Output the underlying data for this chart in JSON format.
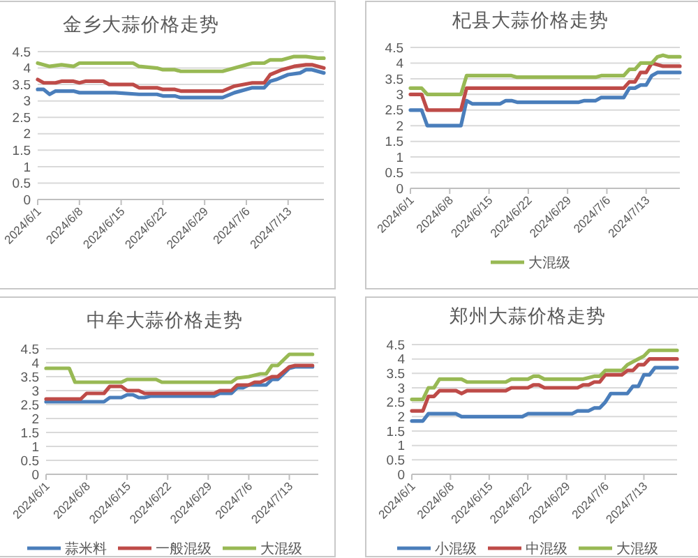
{
  "chart_data": [
    {
      "type": "line",
      "title": "金乡大蒜价格走势",
      "xlim": [
        "2024-06-01",
        "2024-07-19"
      ],
      "ylim": [
        0,
        4.5
      ],
      "yticks": [
        0,
        0.5,
        1,
        1.5,
        2,
        2.5,
        3,
        3.5,
        4,
        4.5
      ],
      "grid": "y",
      "legend": false,
      "xticks": [
        {
          "value": "2024-06-01",
          "label": "2024/6/1"
        },
        {
          "value": "2024-06-08",
          "label": "2024/6/8"
        },
        {
          "value": "2024-06-15",
          "label": "2024/6/15"
        },
        {
          "value": "2024-06-22",
          "label": "2024/6/22"
        },
        {
          "value": "2024-06-29",
          "label": "2024/6/29"
        },
        {
          "value": "2024-07-06",
          "label": "2024/7/6"
        },
        {
          "value": "2024-07-13",
          "label": "2024/7/13"
        }
      ],
      "series": [
        {
          "color": "#4a7ebb",
          "x": [
            "2024-06-01",
            "2024-06-02",
            "2024-06-03",
            "2024-06-04",
            "2024-06-07",
            "2024-06-08",
            "2024-06-14",
            "2024-06-18",
            "2024-06-21",
            "2024-06-22",
            "2024-06-24",
            "2024-06-25",
            "2024-07-02",
            "2024-07-04",
            "2024-07-07",
            "2024-07-09",
            "2024-07-10",
            "2024-07-11",
            "2024-07-13",
            "2024-07-15",
            "2024-07-16",
            "2024-07-17",
            "2024-07-19"
          ],
          "values": [
            3.35,
            3.35,
            3.2,
            3.3,
            3.3,
            3.25,
            3.25,
            3.2,
            3.2,
            3.15,
            3.15,
            3.1,
            3.1,
            3.25,
            3.4,
            3.4,
            3.6,
            3.65,
            3.8,
            3.85,
            3.95,
            3.95,
            3.85
          ]
        },
        {
          "color": "#be4b48",
          "x": [
            "2024-06-01",
            "2024-06-02",
            "2024-06-04",
            "2024-06-05",
            "2024-06-07",
            "2024-06-08",
            "2024-06-09",
            "2024-06-12",
            "2024-06-13",
            "2024-06-17",
            "2024-06-18",
            "2024-06-21",
            "2024-06-22",
            "2024-06-24",
            "2024-06-25",
            "2024-07-02",
            "2024-07-04",
            "2024-07-07",
            "2024-07-09",
            "2024-07-10",
            "2024-07-12",
            "2024-07-14",
            "2024-07-16",
            "2024-07-17",
            "2024-07-19"
          ],
          "values": [
            3.65,
            3.55,
            3.55,
            3.6,
            3.6,
            3.55,
            3.6,
            3.6,
            3.5,
            3.5,
            3.4,
            3.4,
            3.35,
            3.35,
            3.3,
            3.3,
            3.45,
            3.55,
            3.55,
            3.8,
            3.95,
            4.05,
            4.1,
            4.1,
            4.0
          ]
        },
        {
          "color": "#98b954",
          "x": [
            "2024-06-01",
            "2024-06-03",
            "2024-06-05",
            "2024-06-07",
            "2024-06-08",
            "2024-06-17",
            "2024-06-18",
            "2024-06-21",
            "2024-06-22",
            "2024-06-24",
            "2024-06-25",
            "2024-07-02",
            "2024-07-04",
            "2024-07-07",
            "2024-07-09",
            "2024-07-10",
            "2024-07-12",
            "2024-07-14",
            "2024-07-16",
            "2024-07-18",
            "2024-07-19"
          ],
          "values": [
            4.15,
            4.05,
            4.1,
            4.05,
            4.15,
            4.15,
            4.05,
            4.0,
            3.95,
            3.95,
            3.9,
            3.9,
            4.0,
            4.15,
            4.15,
            4.25,
            4.25,
            4.35,
            4.35,
            4.3,
            4.3
          ]
        }
      ]
    },
    {
      "type": "line",
      "title": "杞县大蒜价格走势",
      "xlim": [
        "2024-06-01",
        "2024-07-19"
      ],
      "ylim": [
        0,
        4.5
      ],
      "yticks": [
        0,
        0.5,
        1,
        1.5,
        2,
        2.5,
        3,
        3.5,
        4,
        4.5
      ],
      "grid": "y",
      "legend": "bottom",
      "xticks": [
        {
          "value": "2024-06-01",
          "label": "2024/6/1"
        },
        {
          "value": "2024-06-08",
          "label": "2024/6/8"
        },
        {
          "value": "2024-06-15",
          "label": "2024/6/15"
        },
        {
          "value": "2024-06-22",
          "label": "2024/6/22"
        },
        {
          "value": "2024-06-29",
          "label": "2024/6/29"
        },
        {
          "value": "2024-07-06",
          "label": "2024/7/6"
        },
        {
          "value": "2024-07-13",
          "label": "2024/7/13"
        }
      ],
      "series": [
        {
          "color": "#4a7ebb",
          "x": [
            "2024-06-01",
            "2024-06-03",
            "2024-06-04",
            "2024-06-10",
            "2024-06-11",
            "2024-06-12",
            "2024-06-17",
            "2024-06-18",
            "2024-06-19",
            "2024-06-20",
            "2024-07-01",
            "2024-07-02",
            "2024-07-04",
            "2024-07-05",
            "2024-07-09",
            "2024-07-10",
            "2024-07-11",
            "2024-07-12",
            "2024-07-13",
            "2024-07-14",
            "2024-07-15",
            "2024-07-19"
          ],
          "values": [
            2.5,
            2.5,
            2.0,
            2.0,
            2.8,
            2.7,
            2.7,
            2.8,
            2.8,
            2.75,
            2.75,
            2.8,
            2.8,
            2.9,
            2.9,
            3.2,
            3.2,
            3.3,
            3.3,
            3.6,
            3.7,
            3.7
          ]
        },
        {
          "color": "#be4b48",
          "x": [
            "2024-06-01",
            "2024-06-03",
            "2024-06-04",
            "2024-06-10",
            "2024-06-11",
            "2024-07-09",
            "2024-07-10",
            "2024-07-11",
            "2024-07-12",
            "2024-07-13",
            "2024-07-14",
            "2024-07-15",
            "2024-07-16",
            "2024-07-19"
          ],
          "values": [
            3.0,
            3.0,
            2.5,
            2.5,
            3.2,
            3.2,
            3.4,
            3.4,
            3.7,
            3.7,
            4.0,
            3.95,
            3.9,
            3.9
          ]
        },
        {
          "name": "大混级",
          "color": "#98b954",
          "x": [
            "2024-06-01",
            "2024-06-03",
            "2024-06-04",
            "2024-06-10",
            "2024-06-11",
            "2024-06-19",
            "2024-06-20",
            "2024-07-04",
            "2024-07-05",
            "2024-07-09",
            "2024-07-10",
            "2024-07-11",
            "2024-07-12",
            "2024-07-14",
            "2024-07-15",
            "2024-07-16",
            "2024-07-17",
            "2024-07-19"
          ],
          "values": [
            3.2,
            3.2,
            3.0,
            3.0,
            3.6,
            3.6,
            3.55,
            3.55,
            3.6,
            3.6,
            3.8,
            3.8,
            4.0,
            4.0,
            4.2,
            4.25,
            4.2,
            4.2
          ]
        }
      ]
    },
    {
      "type": "line",
      "title": "中牟大蒜价格走势",
      "xlim": [
        "2024-06-01",
        "2024-07-18"
      ],
      "ylim": [
        0,
        4.5
      ],
      "yticks": [
        0,
        0.5,
        1,
        1.5,
        2,
        2.5,
        3,
        3.5,
        4,
        4.5
      ],
      "grid": "y",
      "legend": "bottom",
      "xticks": [
        {
          "value": "2024-06-01",
          "label": "2024/6/1"
        },
        {
          "value": "2024-06-08",
          "label": "2024/6/8"
        },
        {
          "value": "2024-06-15",
          "label": "2024/6/15"
        },
        {
          "value": "2024-06-22",
          "label": "2024/6/22"
        },
        {
          "value": "2024-06-29",
          "label": "2024/6/29"
        },
        {
          "value": "2024-07-06",
          "label": "2024/7/6"
        },
        {
          "value": "2024-07-13",
          "label": "2024/7/13"
        }
      ],
      "series": [
        {
          "name": "蒜米料",
          "color": "#4a7ebb",
          "x": [
            "2024-06-01",
            "2024-06-11",
            "2024-06-12",
            "2024-06-14",
            "2024-06-15",
            "2024-06-16",
            "2024-06-17",
            "2024-06-18",
            "2024-06-19",
            "2024-06-30",
            "2024-07-01",
            "2024-07-03",
            "2024-07-04",
            "2024-07-05",
            "2024-07-06",
            "2024-07-09",
            "2024-07-10",
            "2024-07-11",
            "2024-07-13",
            "2024-07-14",
            "2024-07-17"
          ],
          "values": [
            2.6,
            2.6,
            2.75,
            2.75,
            2.85,
            2.85,
            2.75,
            2.75,
            2.8,
            2.8,
            2.9,
            2.9,
            3.1,
            3.1,
            3.2,
            3.2,
            3.4,
            3.4,
            3.8,
            3.85,
            3.85
          ]
        },
        {
          "name": "一般混级",
          "color": "#be4b48",
          "x": [
            "2024-06-01",
            "2024-06-07",
            "2024-06-08",
            "2024-06-11",
            "2024-06-12",
            "2024-06-14",
            "2024-06-15",
            "2024-06-17",
            "2024-06-18",
            "2024-06-30",
            "2024-07-01",
            "2024-07-03",
            "2024-07-04",
            "2024-07-06",
            "2024-07-07",
            "2024-07-08",
            "2024-07-10",
            "2024-07-11",
            "2024-07-13",
            "2024-07-14",
            "2024-07-17"
          ],
          "values": [
            2.7,
            2.7,
            2.9,
            2.9,
            3.15,
            3.15,
            3.0,
            3.0,
            2.9,
            2.9,
            3.0,
            3.0,
            3.2,
            3.2,
            3.3,
            3.3,
            3.5,
            3.5,
            3.85,
            3.9,
            3.9
          ]
        },
        {
          "name": "大混级",
          "color": "#98b954",
          "x": [
            "2024-06-01",
            "2024-06-05",
            "2024-06-06",
            "2024-06-14",
            "2024-06-15",
            "2024-06-20",
            "2024-06-21",
            "2024-07-03",
            "2024-07-04",
            "2024-07-06",
            "2024-07-08",
            "2024-07-09",
            "2024-07-10",
            "2024-07-11",
            "2024-07-13",
            "2024-07-17"
          ],
          "values": [
            3.8,
            3.8,
            3.3,
            3.3,
            3.4,
            3.4,
            3.3,
            3.3,
            3.45,
            3.5,
            3.6,
            3.6,
            3.9,
            3.9,
            4.3,
            4.3
          ]
        }
      ]
    },
    {
      "type": "line",
      "title": "郑州大蒜价格走势",
      "xlim": [
        "2024-06-01",
        "2024-07-19"
      ],
      "ylim": [
        0,
        4.5
      ],
      "yticks": [
        0,
        0.5,
        1,
        1.5,
        2,
        2.5,
        3,
        3.5,
        4,
        4.5
      ],
      "grid": "y",
      "legend": "bottom",
      "xticks": [
        {
          "value": "2024-06-01",
          "label": "2024/6/1"
        },
        {
          "value": "2024-06-08",
          "label": "2024/6/8"
        },
        {
          "value": "2024-06-15",
          "label": "2024/6/15"
        },
        {
          "value": "2024-06-22",
          "label": "2024/6/22"
        },
        {
          "value": "2024-06-29",
          "label": "2024/6/29"
        },
        {
          "value": "2024-07-06",
          "label": "2024/7/6"
        },
        {
          "value": "2024-07-13",
          "label": "2024/7/13"
        }
      ],
      "series": [
        {
          "name": "小混级",
          "color": "#4a7ebb",
          "x": [
            "2024-06-01",
            "2024-06-03",
            "2024-06-04",
            "2024-06-09",
            "2024-06-10",
            "2024-06-21",
            "2024-06-22",
            "2024-06-30",
            "2024-07-01",
            "2024-07-03",
            "2024-07-04",
            "2024-07-05",
            "2024-07-06",
            "2024-07-07",
            "2024-07-10",
            "2024-07-11",
            "2024-07-12",
            "2024-07-13",
            "2024-07-14",
            "2024-07-15",
            "2024-07-19"
          ],
          "values": [
            1.85,
            1.85,
            2.1,
            2.1,
            2.0,
            2.0,
            2.1,
            2.1,
            2.2,
            2.2,
            2.3,
            2.3,
            2.5,
            2.8,
            2.8,
            3.05,
            3.05,
            3.45,
            3.45,
            3.7,
            3.7
          ]
        },
        {
          "name": "中混级",
          "color": "#be4b48",
          "x": [
            "2024-06-01",
            "2024-06-03",
            "2024-06-04",
            "2024-06-05",
            "2024-06-06",
            "2024-06-09",
            "2024-06-10",
            "2024-06-11",
            "2024-06-18",
            "2024-06-19",
            "2024-06-22",
            "2024-06-23",
            "2024-06-24",
            "2024-06-25",
            "2024-07-01",
            "2024-07-02",
            "2024-07-03",
            "2024-07-04",
            "2024-07-05",
            "2024-07-06",
            "2024-07-09",
            "2024-07-10",
            "2024-07-11",
            "2024-07-12",
            "2024-07-13",
            "2024-07-14",
            "2024-07-19"
          ],
          "values": [
            2.2,
            2.2,
            2.7,
            2.7,
            2.9,
            2.9,
            2.8,
            2.9,
            2.9,
            3.0,
            3.0,
            3.1,
            3.1,
            3.0,
            3.0,
            3.1,
            3.1,
            3.2,
            3.2,
            3.45,
            3.45,
            3.6,
            3.6,
            3.8,
            3.8,
            4.0,
            4.0
          ]
        },
        {
          "name": "大混级",
          "color": "#98b954",
          "x": [
            "2024-06-01",
            "2024-06-03",
            "2024-06-04",
            "2024-06-05",
            "2024-06-06",
            "2024-06-10",
            "2024-06-11",
            "2024-06-18",
            "2024-06-19",
            "2024-06-22",
            "2024-06-23",
            "2024-06-24",
            "2024-06-25",
            "2024-07-02",
            "2024-07-04",
            "2024-07-05",
            "2024-07-06",
            "2024-07-09",
            "2024-07-10",
            "2024-07-11",
            "2024-07-12",
            "2024-07-13",
            "2024-07-14",
            "2024-07-19"
          ],
          "values": [
            2.6,
            2.6,
            3.0,
            3.0,
            3.3,
            3.3,
            3.2,
            3.2,
            3.3,
            3.3,
            3.4,
            3.4,
            3.3,
            3.3,
            3.4,
            3.4,
            3.6,
            3.6,
            3.8,
            3.9,
            4.0,
            4.1,
            4.3,
            4.3
          ]
        }
      ]
    }
  ]
}
